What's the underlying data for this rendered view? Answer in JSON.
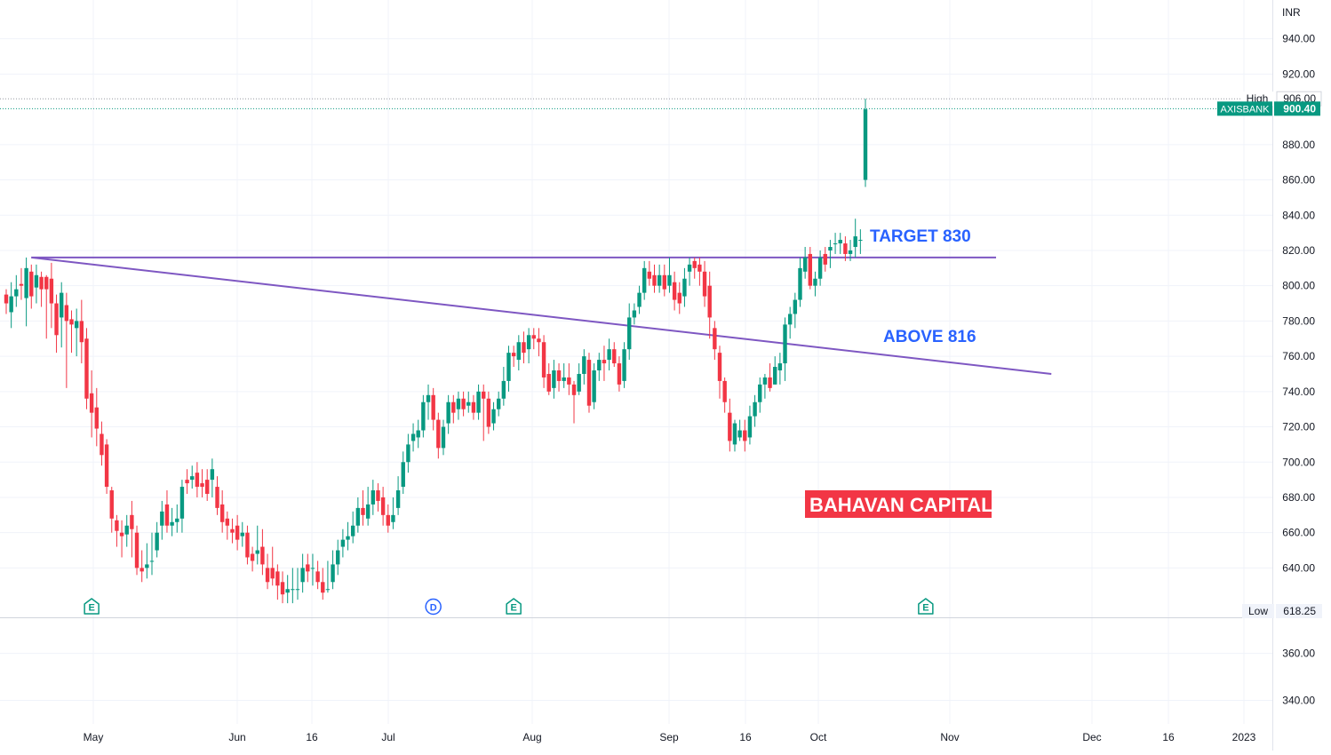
{
  "currency": "INR",
  "chart_data": {
    "type": "candlestick",
    "symbol": "AXISBANK",
    "currency": "INR",
    "last_price": 900.4,
    "high_label": "High",
    "high_value": 906.0,
    "low_label": "Low",
    "low_value": 618.25,
    "y_axis_upper": {
      "range": [
        612,
        962
      ],
      "ticks": [
        {
          "value": 640,
          "label": "640.00"
        },
        {
          "value": 660,
          "label": "660.00"
        },
        {
          "value": 680,
          "label": "680.00"
        },
        {
          "value": 700,
          "label": "700.00"
        },
        {
          "value": 720,
          "label": "720.00"
        },
        {
          "value": 740,
          "label": "740.00"
        },
        {
          "value": 760,
          "label": "760.00"
        },
        {
          "value": 780,
          "label": "780.00"
        },
        {
          "value": 800,
          "label": "800.00"
        },
        {
          "value": 820,
          "label": "820.00"
        },
        {
          "value": 840,
          "label": "840.00"
        },
        {
          "value": 860,
          "label": "860.00"
        },
        {
          "value": 880,
          "label": "880.00"
        },
        {
          "value": 920,
          "label": "920.00"
        },
        {
          "value": 940,
          "label": "940.00"
        }
      ]
    },
    "y_axis_lower": {
      "range": [
        330,
        375
      ],
      "ticks": [
        {
          "value": 360,
          "label": "360.00"
        },
        {
          "value": 340,
          "label": "340.00"
        }
      ]
    },
    "x_ticks": [
      "May",
      "Jun",
      "16",
      "Jul",
      "Aug",
      "Sep",
      "16",
      "Oct",
      "Nov",
      "Dec",
      "16",
      "2023"
    ],
    "candles": [
      [
        795,
        790,
        798,
        784
      ],
      [
        785,
        794,
        802,
        776
      ],
      [
        794,
        798,
        806,
        788
      ],
      [
        801,
        800,
        810,
        792
      ],
      [
        793,
        810,
        816,
        777
      ],
      [
        808,
        794,
        812,
        787
      ],
      [
        799,
        806,
        812,
        790
      ],
      [
        805,
        798,
        808,
        788
      ],
      [
        805,
        798,
        806,
        770
      ],
      [
        804,
        790,
        813,
        776
      ],
      [
        790,
        772,
        795,
        762
      ],
      [
        782,
        796,
        802,
        765
      ],
      [
        789,
        780,
        796,
        742
      ],
      [
        781,
        778,
        786,
        762
      ],
      [
        776,
        780,
        787,
        760
      ],
      [
        780,
        768,
        792,
        756
      ],
      [
        770,
        736,
        776,
        730
      ],
      [
        739,
        728,
        752,
        714
      ],
      [
        731,
        719,
        742,
        709
      ],
      [
        716,
        704,
        723,
        698
      ],
      [
        710,
        686,
        713,
        682
      ],
      [
        684,
        668,
        686,
        660
      ],
      [
        667,
        661,
        670,
        652
      ],
      [
        660,
        658,
        667,
        646
      ],
      [
        659,
        664,
        670,
        652
      ],
      [
        670,
        662,
        678,
        646
      ],
      [
        660,
        640,
        664,
        636
      ],
      [
        640,
        638,
        650,
        632
      ],
      [
        640,
        642,
        654,
        634
      ],
      [
        644,
        644,
        660,
        636
      ],
      [
        650,
        660,
        666,
        646
      ],
      [
        664,
        672,
        678,
        656
      ],
      [
        676,
        664,
        684,
        660
      ],
      [
        664,
        666,
        674,
        658
      ],
      [
        666,
        668,
        676,
        660
      ],
      [
        668,
        686,
        690,
        660
      ],
      [
        690,
        688,
        696,
        682
      ],
      [
        690,
        692,
        698,
        685
      ],
      [
        694,
        686,
        700,
        680
      ],
      [
        688,
        686,
        696,
        680
      ],
      [
        690,
        682,
        696,
        678
      ],
      [
        690,
        696,
        702,
        680
      ],
      [
        686,
        674,
        692,
        670
      ],
      [
        676,
        666,
        684,
        660
      ],
      [
        668,
        664,
        672,
        656
      ],
      [
        662,
        660,
        668,
        654
      ],
      [
        664,
        656,
        670,
        650
      ],
      [
        658,
        660,
        666,
        652
      ],
      [
        660,
        646,
        664,
        642
      ],
      [
        648,
        644,
        652,
        638
      ],
      [
        648,
        650,
        664,
        642
      ],
      [
        652,
        642,
        662,
        636
      ],
      [
        640,
        632,
        648,
        628
      ],
      [
        640,
        634,
        652,
        630
      ],
      [
        638,
        630,
        642,
        622
      ],
      [
        632,
        625,
        638,
        620
      ],
      [
        626,
        628,
        636,
        620
      ],
      [
        628,
        628,
        640,
        620
      ],
      [
        628,
        628,
        640,
        622
      ],
      [
        632,
        640,
        648,
        626
      ],
      [
        642,
        638,
        648,
        632
      ],
      [
        640,
        640,
        648,
        630
      ],
      [
        638,
        632,
        644,
        628
      ],
      [
        632,
        626,
        640,
        622
      ],
      [
        628,
        628,
        644,
        626
      ],
      [
        632,
        642,
        650,
        628
      ],
      [
        642,
        650,
        656,
        636
      ],
      [
        652,
        656,
        662,
        646
      ],
      [
        656,
        658,
        666,
        650
      ],
      [
        658,
        664,
        672,
        654
      ],
      [
        664,
        674,
        680,
        660
      ],
      [
        674,
        670,
        684,
        664
      ],
      [
        668,
        676,
        686,
        664
      ],
      [
        676,
        684,
        690,
        670
      ],
      [
        684,
        678,
        688,
        672
      ],
      [
        680,
        670,
        686,
        664
      ],
      [
        670,
        664,
        676,
        660
      ],
      [
        666,
        670,
        680,
        662
      ],
      [
        674,
        684,
        692,
        670
      ],
      [
        686,
        700,
        706,
        682
      ],
      [
        700,
        710,
        716,
        694
      ],
      [
        712,
        716,
        722,
        706
      ],
      [
        714,
        718,
        724,
        708
      ],
      [
        718,
        734,
        738,
        714
      ],
      [
        734,
        738,
        744,
        724
      ],
      [
        738,
        724,
        742,
        718
      ],
      [
        724,
        708,
        728,
        702
      ],
      [
        708,
        720,
        724,
        704
      ],
      [
        722,
        734,
        738,
        716
      ],
      [
        734,
        728,
        738,
        722
      ],
      [
        730,
        736,
        740,
        724
      ],
      [
        736,
        730,
        740,
        726
      ],
      [
        732,
        734,
        740,
        728
      ],
      [
        734,
        728,
        738,
        724
      ],
      [
        728,
        740,
        744,
        724
      ],
      [
        740,
        736,
        744,
        712
      ],
      [
        736,
        720,
        740,
        716
      ],
      [
        722,
        730,
        734,
        718
      ],
      [
        730,
        736,
        740,
        726
      ],
      [
        736,
        746,
        754,
        732
      ],
      [
        746,
        762,
        766,
        740
      ],
      [
        762,
        760,
        766,
        754
      ],
      [
        758,
        768,
        772,
        752
      ],
      [
        768,
        762,
        774,
        756
      ],
      [
        764,
        772,
        776,
        756
      ],
      [
        772,
        770,
        776,
        764
      ],
      [
        770,
        768,
        776,
        760
      ],
      [
        768,
        748,
        772,
        742
      ],
      [
        750,
        740,
        756,
        738
      ],
      [
        742,
        752,
        758,
        736
      ],
      [
        752,
        746,
        756,
        740
      ],
      [
        746,
        748,
        756,
        742
      ],
      [
        748,
        744,
        756,
        738
      ],
      [
        744,
        738,
        746,
        722
      ],
      [
        740,
        750,
        756,
        738
      ],
      [
        750,
        760,
        764,
        744
      ],
      [
        758,
        732,
        762,
        728
      ],
      [
        734,
        752,
        756,
        730
      ],
      [
        752,
        758,
        762,
        746
      ],
      [
        758,
        756,
        766,
        746
      ],
      [
        758,
        764,
        770,
        752
      ],
      [
        764,
        756,
        768,
        754
      ],
      [
        756,
        744,
        760,
        740
      ],
      [
        746,
        764,
        768,
        742
      ],
      [
        764,
        782,
        790,
        758
      ],
      [
        782,
        786,
        790,
        778
      ],
      [
        788,
        796,
        800,
        784
      ],
      [
        796,
        810,
        814,
        792
      ],
      [
        808,
        804,
        814,
        800
      ],
      [
        806,
        800,
        812,
        796
      ],
      [
        800,
        806,
        812,
        796
      ],
      [
        806,
        798,
        812,
        794
      ],
      [
        800,
        806,
        816,
        796
      ],
      [
        802,
        792,
        808,
        786
      ],
      [
        796,
        790,
        802,
        784
      ],
      [
        794,
        804,
        810,
        788
      ],
      [
        808,
        812,
        816,
        800
      ],
      [
        814,
        810,
        816,
        804
      ],
      [
        812,
        808,
        816,
        800
      ],
      [
        808,
        794,
        814,
        788
      ],
      [
        800,
        782,
        808,
        770
      ],
      [
        776,
        764,
        780,
        758
      ],
      [
        762,
        746,
        766,
        736
      ],
      [
        746,
        734,
        748,
        728
      ],
      [
        728,
        712,
        736,
        706
      ],
      [
        710,
        722,
        724,
        706
      ],
      [
        714,
        718,
        724,
        712
      ],
      [
        718,
        712,
        724,
        706
      ],
      [
        714,
        726,
        732,
        710
      ],
      [
        726,
        734,
        738,
        720
      ],
      [
        734,
        744,
        748,
        728
      ],
      [
        744,
        748,
        750,
        736
      ],
      [
        748,
        742,
        756,
        740
      ],
      [
        744,
        754,
        760,
        744
      ],
      [
        752,
        756,
        762,
        744
      ],
      [
        756,
        778,
        782,
        746
      ],
      [
        778,
        784,
        788,
        770
      ],
      [
        784,
        792,
        796,
        776
      ],
      [
        792,
        810,
        816,
        788
      ],
      [
        808,
        816,
        822,
        804
      ],
      [
        818,
        800,
        822,
        798
      ],
      [
        800,
        804,
        808,
        794
      ],
      [
        804,
        816,
        820,
        800
      ],
      [
        818,
        812,
        822,
        808
      ],
      [
        820,
        822,
        826,
        810
      ],
      [
        824,
        824,
        830,
        818
      ],
      [
        824,
        826,
        830,
        818
      ],
      [
        824,
        818,
        828,
        814
      ],
      [
        818,
        820,
        826,
        814
      ],
      [
        822,
        828,
        838,
        816
      ],
      [
        826,
        826,
        832,
        818
      ],
      [
        860,
        900,
        906,
        856
      ]
    ],
    "trendlines": [
      {
        "name": "horizontal-resistance",
        "from": {
          "bar": 5,
          "price": 816
        },
        "to": {
          "bar": 197,
          "price": 816
        }
      },
      {
        "name": "descending-trendline",
        "from": {
          "bar": 5,
          "price": 816
        },
        "to": {
          "bar": 208,
          "price": 750
        }
      }
    ],
    "annotations": [
      {
        "name": "target-label",
        "text": "TARGET 830",
        "color": "#2962ff"
      },
      {
        "name": "above-label",
        "text": "ABOVE 816",
        "color": "#2962ff"
      },
      {
        "name": "watermark-label",
        "text": "BAHAVAN CAPITAL",
        "color": "#ffffff",
        "background": "#f23645"
      }
    ],
    "event_markers": [
      {
        "bar": 17,
        "label": "E",
        "kind": "earnings",
        "color": "#089981"
      },
      {
        "bar": 85,
        "label": "D",
        "kind": "dividend",
        "color": "#2962ff"
      },
      {
        "bar": 101,
        "label": "E",
        "kind": "earnings",
        "color": "#089981"
      },
      {
        "bar": 183,
        "label": "E",
        "kind": "earnings",
        "color": "#089981"
      }
    ],
    "colors": {
      "up": "#089981",
      "down": "#f23645",
      "trendline": "#7e57c2",
      "grid": "#f0f3fa",
      "axis_text": "#131722",
      "price_line": "#089981"
    }
  }
}
